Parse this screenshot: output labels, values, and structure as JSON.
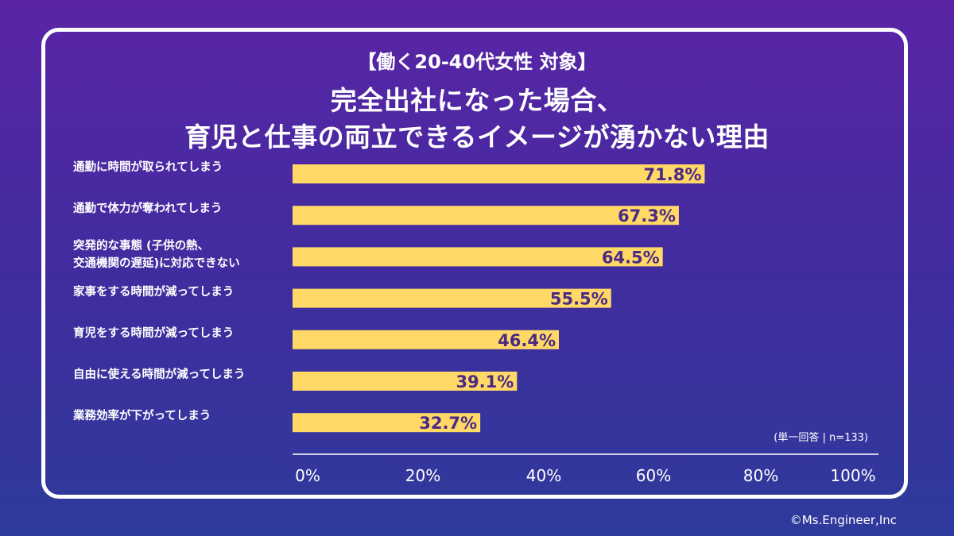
{
  "chart_data": {
    "type": "bar",
    "orientation": "horizontal",
    "subtitle": "【働く20-40代女性 対象】",
    "title_lines": [
      "完全出社になった場合、",
      "育児と仕事の両立できるイメージが湧かない理由"
    ],
    "categories": [
      [
        "通勤に時間が取られてしまう"
      ],
      [
        "通勤で体力が奪われてしまう"
      ],
      [
        "突発的な事態 (子供の熱、",
        "交通機関の遅延)に対応できない"
      ],
      [
        "家事をする時間が減ってしまう"
      ],
      [
        "育児をする時間が減ってしまう"
      ],
      [
        "自由に使える時間が減ってしまう"
      ],
      [
        "業務効率が下がってしまう"
      ]
    ],
    "values": [
      71.8,
      67.3,
      64.5,
      55.5,
      46.4,
      39.1,
      32.7
    ],
    "value_labels": [
      "71.8%",
      "67.3%",
      "64.5%",
      "55.5%",
      "46.4%",
      "39.1%",
      "32.7%"
    ],
    "xlim": [
      0,
      100
    ],
    "x_ticks": [
      "0%",
      "20%",
      "40%",
      "60%",
      "80%",
      "100%"
    ],
    "note": "(単一回答 | n=133)",
    "bar_color": "#ffd866",
    "label_color": "#4a2a86",
    "grid": false
  },
  "credit": "©Ms.Engineer,Inc"
}
